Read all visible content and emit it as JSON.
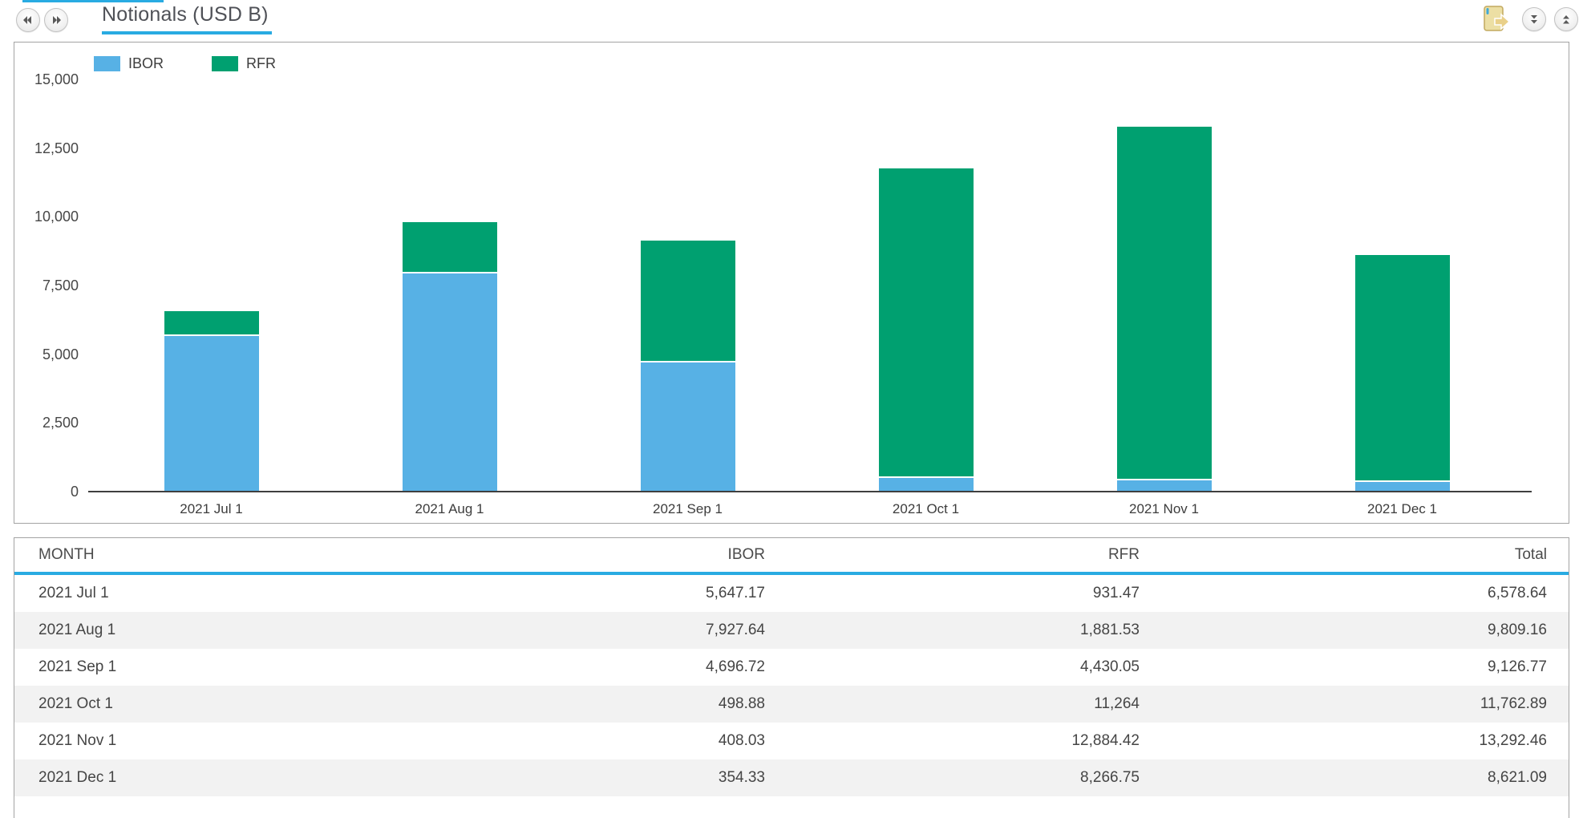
{
  "topbar": {
    "title": "Notionals (USD B)"
  },
  "colors": {
    "accent": "#29ABE2",
    "ibor": "#57B1E5",
    "rfr": "#00A070"
  },
  "chart_data": {
    "type": "bar",
    "stacked": true,
    "title": "Notionals (USD B)",
    "categories": [
      "2021 Jul 1",
      "2021 Aug 1",
      "2021 Sep 1",
      "2021 Oct 1",
      "2021 Nov 1",
      "2021 Dec 1"
    ],
    "series": [
      {
        "name": "IBOR",
        "color": "#57B1E5",
        "values": [
          5647.17,
          7927.64,
          4696.72,
          498.88,
          408.03,
          354.33
        ]
      },
      {
        "name": "RFR",
        "color": "#00A070",
        "values": [
          931.47,
          1881.53,
          4430.05,
          11264,
          12884.42,
          8266.75
        ]
      }
    ],
    "totals": [
      6578.64,
      9809.16,
      9126.77,
      11762.89,
      13292.46,
      8621.09
    ],
    "xlabel": "",
    "ylabel": "",
    "ylim": [
      0,
      15000
    ],
    "yticks": [
      0,
      2500,
      5000,
      7500,
      10000,
      12500,
      15000
    ],
    "ytick_labels": [
      "0",
      "2,500",
      "5,000",
      "7,500",
      "10,000",
      "12,500",
      "15,000"
    ],
    "grid": false,
    "legend_position": "top-left"
  },
  "table": {
    "columns": [
      "MONTH",
      "IBOR",
      "RFR",
      "Total"
    ],
    "rows": [
      [
        "2021 Jul 1",
        "5,647.17",
        "931.47",
        "6,578.64"
      ],
      [
        "2021 Aug 1",
        "7,927.64",
        "1,881.53",
        "9,809.16"
      ],
      [
        "2021 Sep 1",
        "4,696.72",
        "4,430.05",
        "9,126.77"
      ],
      [
        "2021 Oct 1",
        "498.88",
        "11,264",
        "11,762.89"
      ],
      [
        "2021 Nov 1",
        "408.03",
        "12,884.42",
        "13,292.46"
      ],
      [
        "2021 Dec 1",
        "354.33",
        "8,266.75",
        "8,621.09"
      ]
    ]
  }
}
